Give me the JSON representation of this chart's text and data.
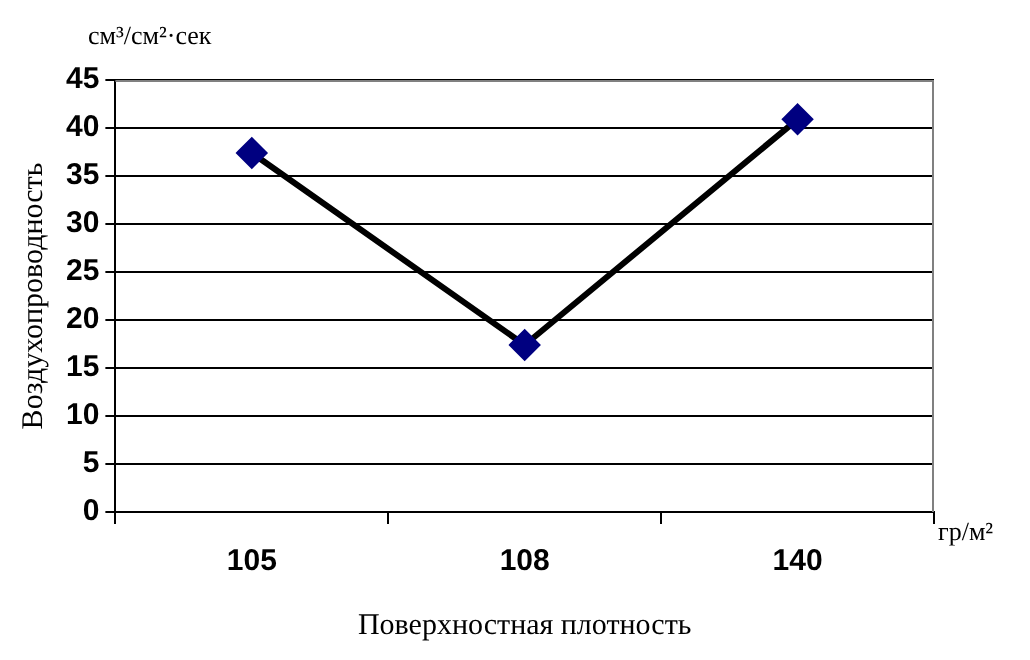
{
  "chart_data": {
    "type": "line",
    "xlabel": "Поверхностная плотность",
    "ylabel": "Воздухопроводность",
    "annotations": [
      "см³/см²·сек",
      "гр/м²"
    ],
    "categories": [
      "105",
      "108",
      "140"
    ],
    "series": [
      {
        "color": "#000080",
        "values": [
          37.4,
          17.4,
          40.9
        ]
      }
    ],
    "ylim": [
      0,
      45
    ],
    "yticks": [
      0,
      5,
      10,
      15,
      20,
      25,
      30,
      35,
      40,
      45
    ],
    "grid": "y",
    "marker": "diamond",
    "line_style": "solid",
    "legend": false
  }
}
